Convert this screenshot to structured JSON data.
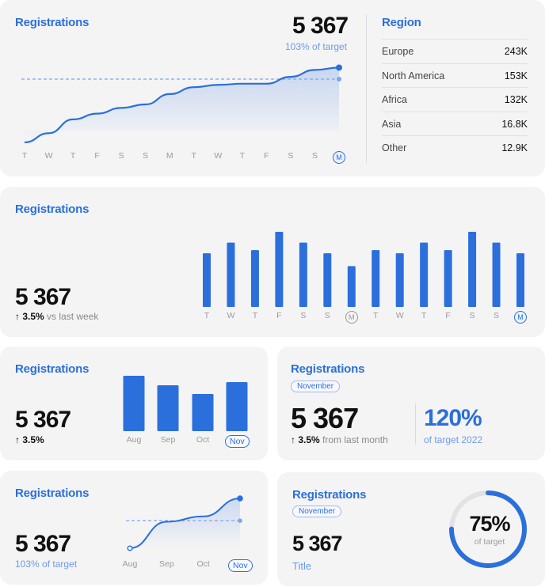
{
  "card1": {
    "title": "Registrations",
    "value": "5 367",
    "sub": "103% of target",
    "days": [
      "T",
      "W",
      "T",
      "F",
      "S",
      "S",
      "M",
      "T",
      "W",
      "T",
      "F",
      "S",
      "S",
      "M"
    ],
    "region_title": "Region",
    "regions": [
      {
        "name": "Europe",
        "value": "243K"
      },
      {
        "name": "North America",
        "value": "153K"
      },
      {
        "name": "Africa",
        "value": "132K"
      },
      {
        "name": "Asia",
        "value": "16.8K"
      },
      {
        "name": "Other",
        "value": "12.9K"
      }
    ]
  },
  "card2": {
    "title": "Registrations",
    "value": "5 367",
    "change": "3.5%",
    "change_suffix": "vs last week",
    "days": [
      "T",
      "W",
      "T",
      "F",
      "S",
      "S",
      "M",
      "T",
      "W",
      "T",
      "F",
      "S",
      "S",
      "M"
    ]
  },
  "card3": {
    "title": "Registrations",
    "value": "5 367",
    "change": "3.5%",
    "months": [
      "Aug",
      "Sep",
      "Oct",
      "Nov"
    ]
  },
  "card4": {
    "title": "Registrations",
    "pill": "November",
    "value": "5 367",
    "change": "3.5%",
    "change_suffix": "from last month",
    "pct": "120%",
    "pct_sub": "of target 2022"
  },
  "card5": {
    "title": "Registrations",
    "value": "5 367",
    "sub": "103% of target",
    "months": [
      "Aug",
      "Sep",
      "Oct",
      "Nov"
    ]
  },
  "card6": {
    "title": "Registrations",
    "pill": "November",
    "value": "5 367",
    "label": "Title",
    "gauge_pct": "75%",
    "gauge_sub": "of target",
    "gauge_fraction": 0.75
  },
  "chart_data": [
    {
      "type": "line",
      "x": [
        "T",
        "W",
        "T",
        "F",
        "S",
        "S",
        "M",
        "T",
        "W",
        "T",
        "F",
        "S",
        "S",
        "M"
      ],
      "series": [
        {
          "values": [
            1,
            1.8,
            3,
            3.5,
            4,
            4.3,
            5.2,
            5.8,
            6,
            6.1,
            6.1,
            6.7,
            7.3,
            7.5
          ]
        }
      ],
      "target": 6.5
    },
    {
      "type": "bar",
      "categories": [
        "T",
        "W",
        "T",
        "F",
        "S",
        "S",
        "M",
        "T",
        "W",
        "T",
        "F",
        "S",
        "S",
        "M"
      ],
      "values": [
        5,
        6,
        5.3,
        7,
        6,
        5,
        3.8,
        5.3,
        5,
        6,
        5.3,
        7,
        6,
        5
      ]
    },
    {
      "type": "bar",
      "categories": [
        "Aug",
        "Sep",
        "Oct",
        "Nov"
      ],
      "values": [
        7,
        5.8,
        4.7,
        6.2
      ]
    },
    {
      "type": "line",
      "x": [
        "Aug",
        "Sep",
        "Oct",
        "Nov"
      ],
      "series": [
        {
          "values": [
            0,
            2.5,
            3,
            4.7
          ]
        }
      ],
      "target": 2.6
    }
  ]
}
